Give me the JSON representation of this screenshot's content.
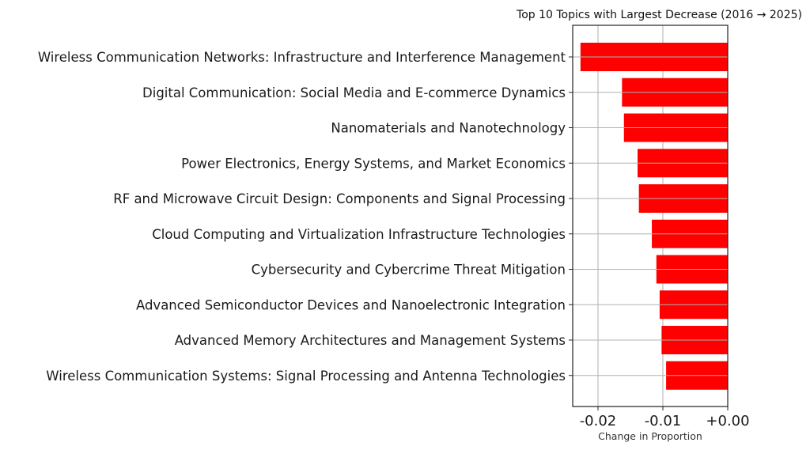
{
  "chart_data": {
    "type": "bar",
    "orientation": "horizontal",
    "title": "Top 10 Topics with Largest Decrease (2016 → 2025)",
    "xlabel": "Change in Proportion",
    "ylabel": "",
    "xlim": [
      -0.0239,
      0.0
    ],
    "xticks": [
      -0.02,
      -0.01,
      0.0
    ],
    "xtick_labels": [
      "-0.02",
      "-0.01",
      "+0.00"
    ],
    "grid": true,
    "bar_color": "#ff0000",
    "categories": [
      "Wireless Communication Networks: Infrastructure and Interference Management",
      "Digital Communication: Social Media and E-commerce Dynamics",
      "Nanomaterials and Nanotechnology",
      "Power Electronics, Energy Systems, and Market Economics",
      "RF and Microwave Circuit Design: Components and Signal Processing",
      "Cloud Computing and Virtualization Infrastructure Technologies",
      "Cybersecurity and Cybercrime Threat Mitigation",
      "Advanced Semiconductor Devices and Nanoelectronic Integration",
      "Advanced Memory Architectures and Management Systems",
      "Wireless Communication Systems: Signal Processing and Antenna Technologies"
    ],
    "values": [
      -0.0227,
      -0.0163,
      -0.016,
      -0.0139,
      -0.0137,
      -0.0117,
      -0.011,
      -0.0105,
      -0.0102,
      -0.0095
    ]
  }
}
